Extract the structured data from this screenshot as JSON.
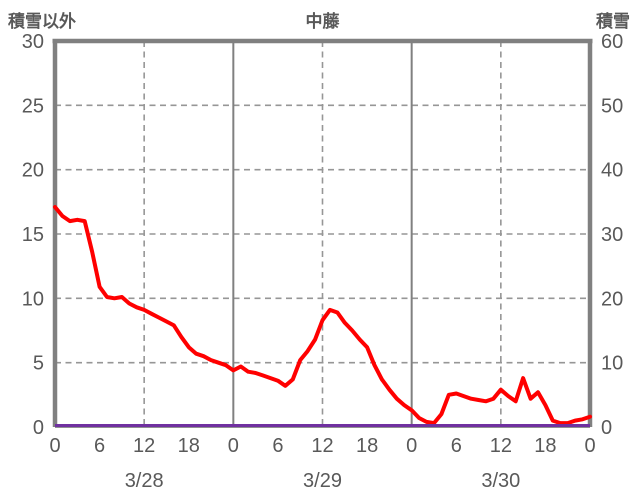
{
  "header": {
    "left_axis_title": "積雪以外",
    "chart_title": "中藤",
    "right_axis_title": "積雪"
  },
  "colors": {
    "frame": "#808080",
    "gridline": "#969696",
    "text": "#595959",
    "series_red": "#FF0000",
    "series_purple": "#7030A0",
    "background": "#FFFFFF"
  },
  "chart_data": {
    "type": "line",
    "title": "中藤",
    "left_axis": {
      "title": "積雪以外",
      "min": 0,
      "max": 30,
      "ticks": [
        0,
        5,
        10,
        15,
        20,
        25,
        30
      ]
    },
    "right_axis": {
      "title": "積雪",
      "min": 0,
      "max": 60,
      "ticks": [
        0,
        10,
        20,
        30,
        40,
        50,
        60
      ]
    },
    "x_axis": {
      "unit": "hour",
      "span_hours": 72,
      "tick_hours": [
        0,
        6,
        12,
        18,
        24,
        30,
        36,
        42,
        48,
        54,
        60,
        66,
        72
      ],
      "tick_labels": [
        "0",
        "6",
        "12",
        "18",
        "0",
        "6",
        "12",
        "18",
        "0",
        "6",
        "12",
        "18",
        "0"
      ],
      "date_labels": [
        {
          "label": "3/28",
          "hour": 12
        },
        {
          "label": "3/29",
          "hour": 36
        },
        {
          "label": "3/30",
          "hour": 60
        }
      ],
      "solid_vertical_hours": [
        24,
        48
      ],
      "dashed_vertical_hours": [
        12,
        36,
        60
      ],
      "grid": true
    },
    "series": [
      {
        "name": "積雪以外",
        "axis": "left",
        "color": "#FF0000",
        "x_hours": [
          0,
          1,
          2,
          3,
          4,
          5,
          6,
          7,
          8,
          9,
          10,
          11,
          12,
          13,
          14,
          15,
          16,
          17,
          18,
          19,
          20,
          21,
          22,
          23,
          24,
          25,
          26,
          27,
          28,
          29,
          30,
          31,
          32,
          33,
          34,
          35,
          36,
          37,
          38,
          39,
          40,
          41,
          42,
          43,
          44,
          45,
          46,
          47,
          48,
          49,
          50,
          51,
          52,
          53,
          54,
          55,
          56,
          57,
          58,
          59,
          60,
          61,
          62,
          63,
          64,
          65,
          66,
          67,
          68,
          69,
          70,
          71,
          72
        ],
        "values": [
          17.1,
          16.4,
          16.0,
          16.1,
          16.0,
          13.6,
          10.9,
          10.1,
          10.0,
          10.1,
          9.6,
          9.3,
          9.1,
          8.8,
          8.5,
          8.2,
          7.9,
          7.0,
          6.2,
          5.7,
          5.5,
          5.2,
          5.0,
          4.8,
          4.4,
          4.7,
          4.3,
          4.2,
          4.0,
          3.8,
          3.6,
          3.2,
          3.7,
          5.2,
          5.9,
          6.8,
          8.3,
          9.1,
          8.9,
          8.1,
          7.5,
          6.8,
          6.2,
          4.8,
          3.7,
          2.9,
          2.2,
          1.7,
          1.3,
          0.7,
          0.4,
          0.3,
          1.0,
          2.5,
          2.6,
          2.4,
          2.2,
          2.1,
          2.0,
          2.2,
          2.9,
          2.4,
          2.0,
          3.8,
          2.2,
          2.7,
          1.7,
          0.5,
          0.3,
          0.3,
          0.5,
          0.6,
          0.8
        ]
      },
      {
        "name": "積雪",
        "axis": "right",
        "color": "#7030A0",
        "constant_value": 0
      }
    ]
  }
}
